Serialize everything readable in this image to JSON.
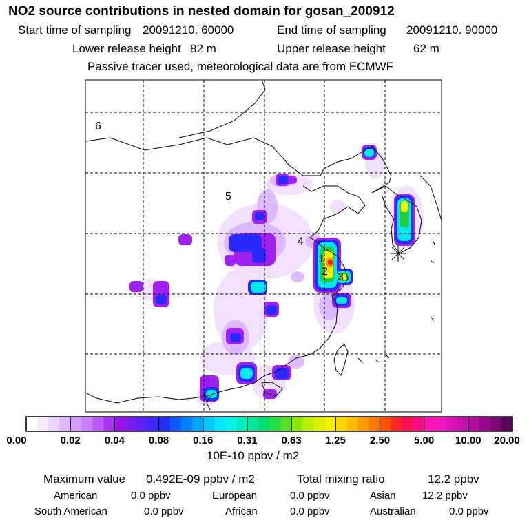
{
  "title": "NO2 source contributions in nested domain for gosan_200912",
  "header": {
    "start_label": "Start time of sampling",
    "start_value": "20091210. 60000",
    "end_label": "End time of sampling",
    "end_value": "20091210. 90000",
    "lower_label": "Lower release height",
    "lower_value": "82 m",
    "upper_label": "Upper release height",
    "upper_value": "62 m",
    "note": "Passive tracer used, meteorological data are from ECMWF"
  },
  "map": {
    "region_labels": [
      "6",
      "5",
      "4",
      "1",
      "2",
      "3"
    ],
    "colors": {
      "border": "#000000",
      "grid": "#000000",
      "low": "#ecd6ff",
      "purple": "#a020f0",
      "blue": "#2a2aff",
      "cyan": "#00e8e8",
      "green": "#22cc44",
      "yellow": "#f0f000",
      "red": "#ff2020"
    }
  },
  "colorbar": {
    "labels": [
      "0.00",
      "0.02",
      "0.04",
      "0.08",
      "0.16",
      "0.31",
      "0.63",
      "1.25",
      "2.50",
      "5.00",
      "10.00",
      "20.00"
    ],
    "colors": [
      "#ffffff",
      "#f6e8ff",
      "#ecd2ff",
      "#e0b8ff",
      "#d59cff",
      "#c97dff",
      "#bb5cf8",
      "#aa35ee",
      "#9a12e8",
      "#7a1cf0",
      "#5a24f8",
      "#3a28ff",
      "#2030ff",
      "#1058ff",
      "#0080ff",
      "#00a6ff",
      "#00c8ff",
      "#00e4ff",
      "#00f2e8",
      "#00ecc0",
      "#00e89a",
      "#00dd70",
      "#22dd44",
      "#55e022",
      "#8ce800",
      "#b8ee00",
      "#ddf000",
      "#f4ee00",
      "#ffd800",
      "#ffbc00",
      "#ff9a00",
      "#ff7800",
      "#ff5500",
      "#ff2828",
      "#ff1050",
      "#ff0c84",
      "#ff14b4",
      "#f018c4",
      "#dc14b8",
      "#c810ac",
      "#b40c9e",
      "#9a0a8c",
      "#7c0876",
      "#5a0658"
    ],
    "unit": "10E-10 ppbv / m2"
  },
  "stats": {
    "max_label": "Maximum value",
    "max_value": "0.492E-09 ppbv / m2",
    "total_label": "Total mixing ratio",
    "total_value": "12.2 ppbv",
    "regions": [
      {
        "name": "American",
        "value": "0.0 ppbv"
      },
      {
        "name": "European",
        "value": "0.0 ppbv"
      },
      {
        "name": "Asian",
        "value": "12.2 ppbv"
      },
      {
        "name": "South American",
        "value": "0.0 ppbv"
      },
      {
        "name": "African",
        "value": "0.0 ppbv"
      },
      {
        "name": "Australian",
        "value": "0.0 ppbv"
      }
    ]
  }
}
